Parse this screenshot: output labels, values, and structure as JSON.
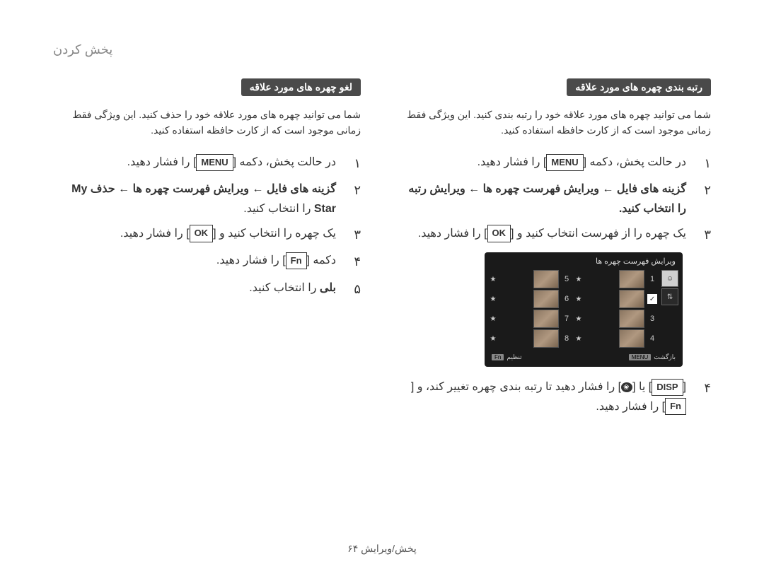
{
  "page_header": "پخش کردن",
  "page_footer": "پخش/ویرایش ۶۴",
  "right_col": {
    "badge": "رتبه بندی چهره های مورد علاقه",
    "description": "شما می توانید چهره های مورد علاقه خود را رتبه بندی کنید. این ویژگی فقط زمانی موجود است که از کارت حافظه استفاده کنید.",
    "steps": {
      "s1_num": "۱",
      "s1_text_a": "در حالت پخش، دکمه [",
      "s1_btn": "MENU",
      "s1_text_b": "] را فشار دهید.",
      "s2_num": "۲",
      "s2_text": "گزینه های فایل ← ویرایش فهرست چهره ها ← ویرایش رتبه را انتخاب کنید.",
      "s3_num": "۳",
      "s3_text_a": "یک چهره را از فهرست انتخاب کنید و [",
      "s3_btn": "OK",
      "s3_text_b": "] را فشار دهید.",
      "s4_num": "۴",
      "s4_text_a": "[",
      "s4_btn1": "DISP",
      "s4_text_b": "] یا [",
      "s4_text_c": "] را فشار دهید تا رتبه بندی چهره تغییر کند، و [",
      "s4_btn2": "Fn",
      "s4_text_d": "] را فشار دهید."
    }
  },
  "left_col": {
    "badge": "لغو چهره های مورد علاقه",
    "description": "شما می توانید چهره های مورد علاقه خود را حذف کنید. این ویژگی فقط زمانی موجود است که از کارت حافظه استفاده کنید.",
    "steps": {
      "s1_num": "۱",
      "s1_text_a": "در حالت پخش، دکمه [",
      "s1_btn": "MENU",
      "s1_text_b": "] را فشار دهید.",
      "s2_num": "۲",
      "s2_text_a": "گزینه های فایل ← ویرایش فهرست چهره ها ← حذف ",
      "s2_bold": "My Star",
      "s2_text_b": " را انتخاب کنید.",
      "s3_num": "۳",
      "s3_text_a": "یک چهره را انتخاب کنید و [",
      "s3_btn": "OK",
      "s3_text_b": "] را فشار دهید.",
      "s4_num": "۴",
      "s4_text_a": "دکمه [",
      "s4_btn": "Fn",
      "s4_text_b": "] را فشار دهید.",
      "s5_num": "۵",
      "s5_bold": "بلی",
      "s5_text": " را انتخاب کنید."
    }
  },
  "camera": {
    "title": "ویرایش فهرست چهره ها",
    "rows": [
      {
        "left_num": "1",
        "right_num": "5"
      },
      {
        "left_num": "2",
        "right_num": "6",
        "checked": true
      },
      {
        "left_num": "3",
        "right_num": "7"
      },
      {
        "left_num": "4",
        "right_num": "8"
      }
    ],
    "footer_back_label": "بازگشت",
    "footer_back_btn": "MENU",
    "footer_set_label": "تنظیم",
    "footer_set_btn": "Fn"
  },
  "colors": {
    "badge_bg": "#4a4a4a",
    "badge_fg": "#ffffff",
    "text": "#333333",
    "muted": "#888888",
    "screen_bg": "#1a1a1a"
  }
}
